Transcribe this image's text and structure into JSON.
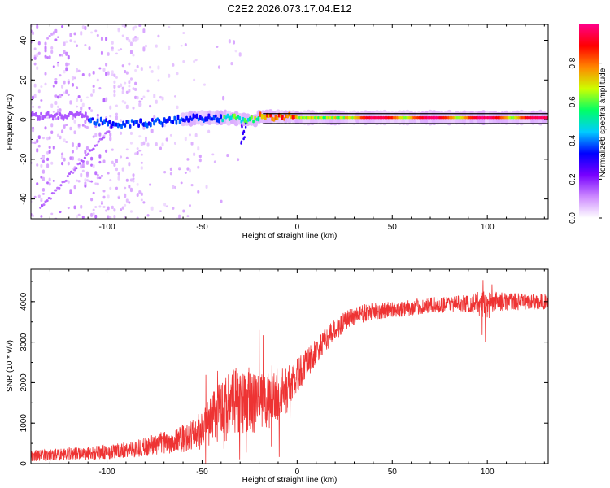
{
  "title": "C2E2.2026.073.17.04.E12",
  "chart_data": [
    {
      "type": "heatmap",
      "xlabel": "Height of straight line (km)",
      "ylabel": "Frequency (Hz)",
      "xlim": [
        -140,
        132
      ],
      "ylim": [
        -50,
        48
      ],
      "x_ticks": [
        -100,
        -50,
        0,
        50,
        100
      ],
      "x_tick_labels": [
        "-100",
        "-50",
        "0",
        "50",
        "100"
      ],
      "y_ticks": [
        -40,
        -20,
        0,
        20,
        40
      ],
      "y_tick_labels": [
        "-40",
        "-20",
        "0",
        "20",
        "40"
      ],
      "signal_band_hz": 1,
      "reference_lines_hz": [
        3,
        -2
      ],
      "colorbar": {
        "label": "Normalized spectral amplitude",
        "range": [
          0,
          1
        ],
        "ticks": [
          0,
          0.2,
          0.4,
          0.6,
          0.8
        ],
        "tick_labels": [
          "0.0",
          "0.2",
          "0.4",
          "0.6",
          "0.8"
        ],
        "colors": [
          "#ffffff",
          "#cc88ff",
          "#7700ff",
          "#0000ff",
          "#00ccff",
          "#00ff66",
          "#ccff00",
          "#ff8800",
          "#ff0000",
          "#ff0088"
        ]
      }
    },
    {
      "type": "line",
      "xlabel": "Height of straight line (km)",
      "ylabel": "SNR (10 * v/v)",
      "xlim": [
        -140,
        132
      ],
      "ylim": [
        0,
        4800
      ],
      "x_ticks": [
        -100,
        -50,
        0,
        50,
        100
      ],
      "x_tick_labels": [
        "-100",
        "-50",
        "0",
        "50",
        "100"
      ],
      "y_ticks": [
        0,
        1000,
        2000,
        3000,
        4000
      ],
      "y_tick_labels": [
        "0",
        "1000",
        "2000",
        "3000",
        "4000"
      ],
      "color": "#ee3333",
      "series": [
        {
          "name": "SNR",
          "x": [
            -140,
            -120,
            -100,
            -90,
            -80,
            -70,
            -60,
            -50,
            -45,
            -40,
            -35,
            -30,
            -25,
            -20,
            -15,
            -10,
            -5,
            0,
            5,
            10,
            15,
            20,
            25,
            30,
            40,
            50,
            60,
            70,
            80,
            90,
            95,
            100,
            105,
            110,
            120,
            132
          ],
          "values": [
            200,
            240,
            280,
            330,
            420,
            520,
            620,
            800,
            1100,
            1300,
            1450,
            1600,
            1500,
            1500,
            1550,
            1650,
            1850,
            2150,
            2450,
            2750,
            3050,
            3300,
            3500,
            3650,
            3750,
            3800,
            3850,
            3900,
            3950,
            3950,
            3950,
            3900,
            4000,
            4000,
            4000,
            4000
          ],
          "noise": [
            150,
            160,
            180,
            200,
            230,
            280,
            350,
            500,
            700,
            800,
            850,
            850,
            800,
            750,
            700,
            650,
            550,
            450,
            380,
            330,
            300,
            270,
            250,
            240,
            220,
            200,
            200,
            200,
            200,
            220,
            300,
            350,
            250,
            220,
            200,
            200
          ]
        }
      ]
    }
  ]
}
